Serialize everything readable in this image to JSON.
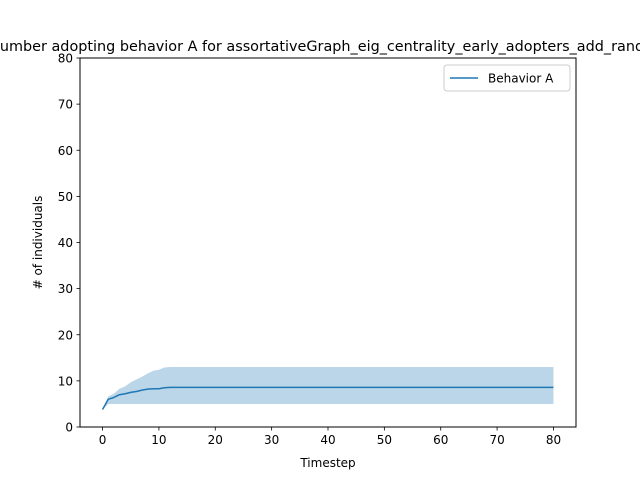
{
  "chart_data": {
    "type": "line",
    "title": "Number adopting behavior A for assortativeGraph_eig_centrality_early_adopters_add_random",
    "xlabel": "Timestep",
    "ylabel": "# of individuals",
    "xlim": [
      -4,
      84
    ],
    "ylim": [
      0,
      80
    ],
    "xticks": [
      0,
      10,
      20,
      30,
      40,
      50,
      60,
      70,
      80
    ],
    "yticks": [
      0,
      10,
      20,
      30,
      40,
      50,
      60,
      70,
      80
    ],
    "grid": false,
    "legend_position": "top-right",
    "series": [
      {
        "name": "Behavior A",
        "color": "#1f77b4",
        "band_color": "#1f77b4",
        "band_opacity": 0.3,
        "x": [
          0,
          1,
          2,
          3,
          4,
          5,
          6,
          7,
          8,
          9,
          10,
          11,
          12,
          80
        ],
        "y": [
          3.8,
          6.0,
          6.4,
          7.0,
          7.2,
          7.5,
          7.7,
          8.0,
          8.2,
          8.3,
          8.3,
          8.5,
          8.6,
          8.6
        ],
        "lower": [
          3.8,
          5.0,
          5.0,
          5.0,
          5.0,
          5.0,
          5.0,
          5.0,
          5.0,
          5.0,
          5.0,
          5.0,
          5.0,
          5.0
        ],
        "upper": [
          3.8,
          6.6,
          7.2,
          8.3,
          8.8,
          9.7,
          10.3,
          10.9,
          11.6,
          12.2,
          12.4,
          12.9,
          13.0,
          13.0
        ]
      }
    ]
  }
}
